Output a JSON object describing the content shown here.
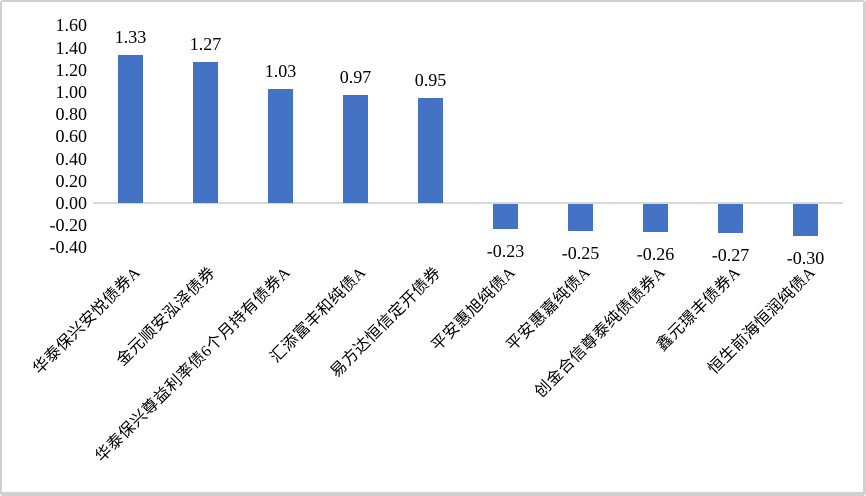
{
  "chart_data": {
    "type": "bar",
    "title": "",
    "xlabel": "",
    "ylabel": "",
    "categories": [
      "华泰保兴安悦债券A",
      "金元顺安泓泽债券",
      "华泰保兴尊益利率债6个月持有债券A",
      "汇添富丰和纯债A",
      "易方达恒信定开债券",
      "平安惠旭纯债A",
      "平安惠嘉纯债A",
      "创金合信尊泰纯债债券A",
      "鑫元璟丰债券A",
      "恒生前海恒润纯债A"
    ],
    "values": [
      1.33,
      1.27,
      1.03,
      0.97,
      0.95,
      -0.23,
      -0.25,
      -0.26,
      -0.27,
      -0.3
    ],
    "data_labels": [
      "1.33",
      "1.27",
      "1.03",
      "0.97",
      "0.95",
      "-0.23",
      "-0.25",
      "-0.26",
      "-0.27",
      "-0.30"
    ],
    "yticks": [
      "1.60",
      "1.40",
      "1.20",
      "1.00",
      "0.80",
      "0.60",
      "0.40",
      "0.20",
      "0.00",
      "-0.20",
      "-0.40"
    ],
    "ylim": [
      -0.4,
      1.6
    ],
    "grid": false,
    "legend": null,
    "bar_color": "#4472C4",
    "axis_color": "#D9D9D9",
    "text_color": "#000000",
    "frame_border_color": "#D0D0D0",
    "background_color": "#FFFFFF"
  }
}
